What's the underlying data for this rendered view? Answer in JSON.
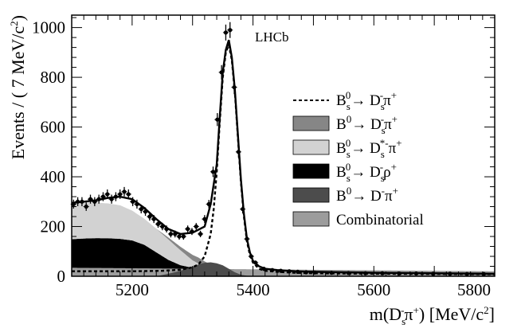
{
  "chart_data": {
    "type": "area",
    "experiment_label": "LHCb",
    "xlabel": "m(D_s^- π^+) [MeV/c^2]",
    "ylabel": "Events / ( 7 MeV/c^2)",
    "xlim": [
      5100,
      5800
    ],
    "ylim": [
      0,
      1050
    ],
    "x_ticks": [
      5200,
      5400,
      5600,
      5800
    ],
    "y_ticks": [
      0,
      200,
      400,
      600,
      800,
      1000
    ],
    "x_tick_labels": [
      "5200",
      "5400",
      "5600",
      "5800"
    ],
    "y_tick_labels": [
      "0",
      "200",
      "400",
      "600",
      "800",
      "1000"
    ],
    "legend": [
      {
        "key": "signal",
        "style": "dashed-line",
        "label": "B_s^0 → D_s^- π^+",
        "color": "#000000"
      },
      {
        "key": "bd",
        "style": "box",
        "label": "B^0 → D_s^- π^+",
        "color": "#868686"
      },
      {
        "key": "dsstar",
        "style": "box",
        "label": "B_s^0 → D_s^{*-} π^+",
        "color": "#d2d2d2"
      },
      {
        "key": "dsrho",
        "style": "box",
        "label": "B_s^0 → D_s^- ρ^+",
        "color": "#000000"
      },
      {
        "key": "dpi",
        "style": "box",
        "label": "B^0 → D^- π^+",
        "color": "#4c4c4c"
      },
      {
        "key": "comb",
        "style": "box",
        "label": "Combinatorial",
        "color": "#9c9c9c"
      }
    ],
    "stack_order": [
      "comb",
      "dsrho",
      "dsstar",
      "bd"
    ],
    "series": [
      {
        "name": "Combinatorial",
        "key": "comb",
        "color": "#9c9c9c",
        "x": [
          5100,
          5200,
          5300,
          5400,
          5500,
          5600,
          5700,
          5800
        ],
        "y": [
          34,
          32,
          30,
          28,
          26,
          24,
          22,
          20
        ]
      },
      {
        "name": "B_s^0 → D_s^- ρ^+",
        "key": "dsrho",
        "color": "#000000",
        "x": [
          5100,
          5120,
          5140,
          5160,
          5180,
          5200,
          5220,
          5240,
          5260,
          5280,
          5300,
          5320,
          5340,
          5360,
          5800
        ],
        "y": [
          115,
          118,
          120,
          120,
          118,
          112,
          95,
          65,
          35,
          14,
          4,
          0,
          0,
          0,
          0
        ]
      },
      {
        "name": "B_s^0 → D_s^{*-} π^+",
        "key": "dsstar",
        "color": "#d2d2d2",
        "x": [
          5100,
          5120,
          5140,
          5160,
          5180,
          5200,
          5220,
          5240,
          5260,
          5280,
          5300,
          5320,
          5340,
          5360,
          5800
        ],
        "y": [
          145,
          145,
          143,
          140,
          135,
          120,
          105,
          95,
          82,
          60,
          30,
          8,
          0,
          0,
          0
        ]
      },
      {
        "name": "B^0 → D_s^- π^+",
        "key": "bd",
        "color": "#868686",
        "x": [
          5100,
          5240,
          5260,
          5280,
          5300,
          5310,
          5320,
          5340,
          5360,
          5800
        ],
        "y": [
          0,
          0,
          8,
          14,
          22,
          24,
          22,
          6,
          0,
          0
        ]
      },
      {
        "name": "B^0 → D^- π^+",
        "key": "dpi",
        "color": "#4c4c4c",
        "x": [
          5240,
          5260,
          5280,
          5300,
          5310,
          5320,
          5330,
          5340,
          5350,
          5360,
          5370,
          5380,
          5390,
          5400
        ],
        "y": [
          0,
          10,
          22,
          38,
          48,
          54,
          56,
          52,
          44,
          30,
          16,
          6,
          2,
          0
        ]
      },
      {
        "name": "B_s^0 → D_s^- π^+",
        "key": "signal",
        "style": "dashed",
        "color": "#000000",
        "x": [
          5100,
          5200,
          5250,
          5280,
          5300,
          5310,
          5320,
          5330,
          5335,
          5340,
          5345,
          5350,
          5355,
          5360,
          5365,
          5370,
          5375,
          5380,
          5385,
          5390,
          5395,
          5400,
          5410,
          5420,
          5440,
          5470,
          5500,
          5600,
          5800
        ],
        "y": [
          20,
          20,
          22,
          26,
          36,
          48,
          80,
          170,
          270,
          420,
          620,
          800,
          900,
          930,
          870,
          740,
          560,
          380,
          240,
          140,
          85,
          55,
          30,
          22,
          18,
          14,
          12,
          10,
          8
        ]
      },
      {
        "name": "Total fit",
        "key": "total",
        "style": "solid",
        "color": "#000000",
        "x": [
          5100,
          5120,
          5140,
          5160,
          5180,
          5200,
          5220,
          5240,
          5260,
          5280,
          5300,
          5320,
          5330,
          5340,
          5345,
          5350,
          5355,
          5360,
          5365,
          5370,
          5375,
          5380,
          5385,
          5390,
          5395,
          5400,
          5410,
          5420,
          5440,
          5470,
          5500,
          5600,
          5800
        ],
        "y": [
          295,
          300,
          305,
          315,
          320,
          310,
          275,
          230,
          190,
          170,
          175,
          200,
          290,
          450,
          640,
          820,
          910,
          950,
          880,
          750,
          570,
          390,
          250,
          150,
          95,
          62,
          40,
          30,
          25,
          20,
          18,
          14,
          10
        ]
      }
    ],
    "data_points": {
      "x": [
        5103,
        5110,
        5117,
        5124,
        5131,
        5138,
        5145,
        5152,
        5159,
        5166,
        5173,
        5180,
        5187,
        5194,
        5201,
        5208,
        5215,
        5222,
        5229,
        5236,
        5243,
        5250,
        5257,
        5264,
        5271,
        5278,
        5285,
        5292,
        5299,
        5306,
        5313,
        5320,
        5327,
        5334,
        5341,
        5348,
        5355,
        5362,
        5369,
        5376,
        5383,
        5390,
        5397,
        5404,
        5418,
        5432,
        5446,
        5460,
        5474,
        5488,
        5502,
        5530,
        5558,
        5586,
        5614,
        5642,
        5670,
        5698,
        5726,
        5754,
        5782
      ],
      "y": [
        290,
        300,
        300,
        280,
        310,
        300,
        310,
        320,
        330,
        310,
        320,
        330,
        340,
        330,
        300,
        290,
        270,
        260,
        240,
        230,
        210,
        200,
        190,
        170,
        170,
        160,
        160,
        190,
        180,
        200,
        170,
        230,
        290,
        420,
        630,
        820,
        980,
        990,
        760,
        500,
        270,
        150,
        80,
        55,
        30,
        25,
        22,
        20,
        18,
        16,
        15,
        14,
        13,
        12,
        12,
        11,
        11,
        10,
        10,
        9,
        9
      ],
      "err": [
        18,
        18,
        18,
        17,
        18,
        18,
        18,
        18,
        19,
        18,
        18,
        19,
        19,
        19,
        18,
        18,
        17,
        17,
        16,
        16,
        15,
        15,
        14,
        14,
        14,
        13,
        13,
        14,
        14,
        14,
        13,
        16,
        17,
        21,
        26,
        29,
        32,
        32,
        28,
        23,
        17,
        13,
        10,
        8,
        6,
        5,
        5,
        5,
        5,
        4,
        4,
        4,
        4,
        4,
        4,
        4,
        4,
        4,
        4,
        4,
        4
      ]
    }
  }
}
